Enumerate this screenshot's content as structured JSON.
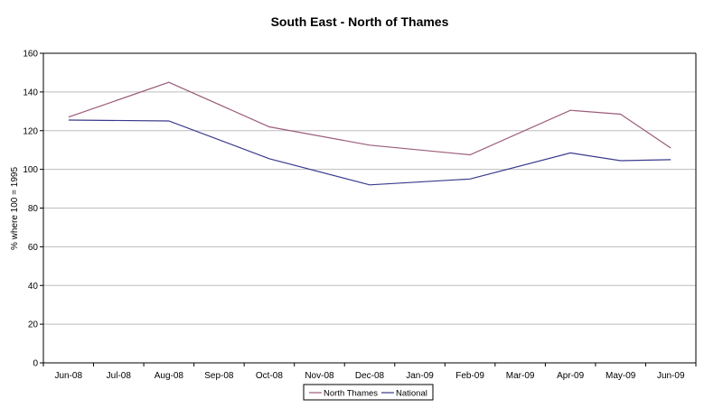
{
  "chart_data": {
    "type": "line",
    "title": "South East - North of Thames",
    "xlabel": "",
    "ylabel": "% where 100 = 1995",
    "categories": [
      "Jun-08",
      "Jul-08",
      "Aug-08",
      "Sep-08",
      "Oct-08",
      "Nov-08",
      "Dec-08",
      "Jan-09",
      "Feb-09",
      "Mar-09",
      "Apr-09",
      "May-09",
      "Jun-09"
    ],
    "ylim": [
      0,
      160
    ],
    "yticks": [
      0,
      20,
      40,
      60,
      80,
      100,
      120,
      140,
      160
    ],
    "grid": true,
    "legend_position": "bottom",
    "series": [
      {
        "name": "North Thames",
        "color": "#9b5c7a",
        "x": [
          "Jun-08",
          "Aug-08",
          "Oct-08",
          "Dec-08",
          "Feb-09",
          "Apr-09",
          "May-09",
          "Jun-09"
        ],
        "values": [
          127,
          145,
          122,
          112.5,
          107.5,
          130.5,
          128.5,
          111
        ]
      },
      {
        "name": "National",
        "color": "#3a3a8c",
        "x": [
          "Jun-08",
          "Aug-08",
          "Oct-08",
          "Dec-08",
          "Feb-09",
          "Apr-09",
          "May-09",
          "Jun-09"
        ],
        "values": [
          125.5,
          125,
          105.5,
          92,
          95,
          108.5,
          104.5,
          105
        ]
      }
    ]
  }
}
